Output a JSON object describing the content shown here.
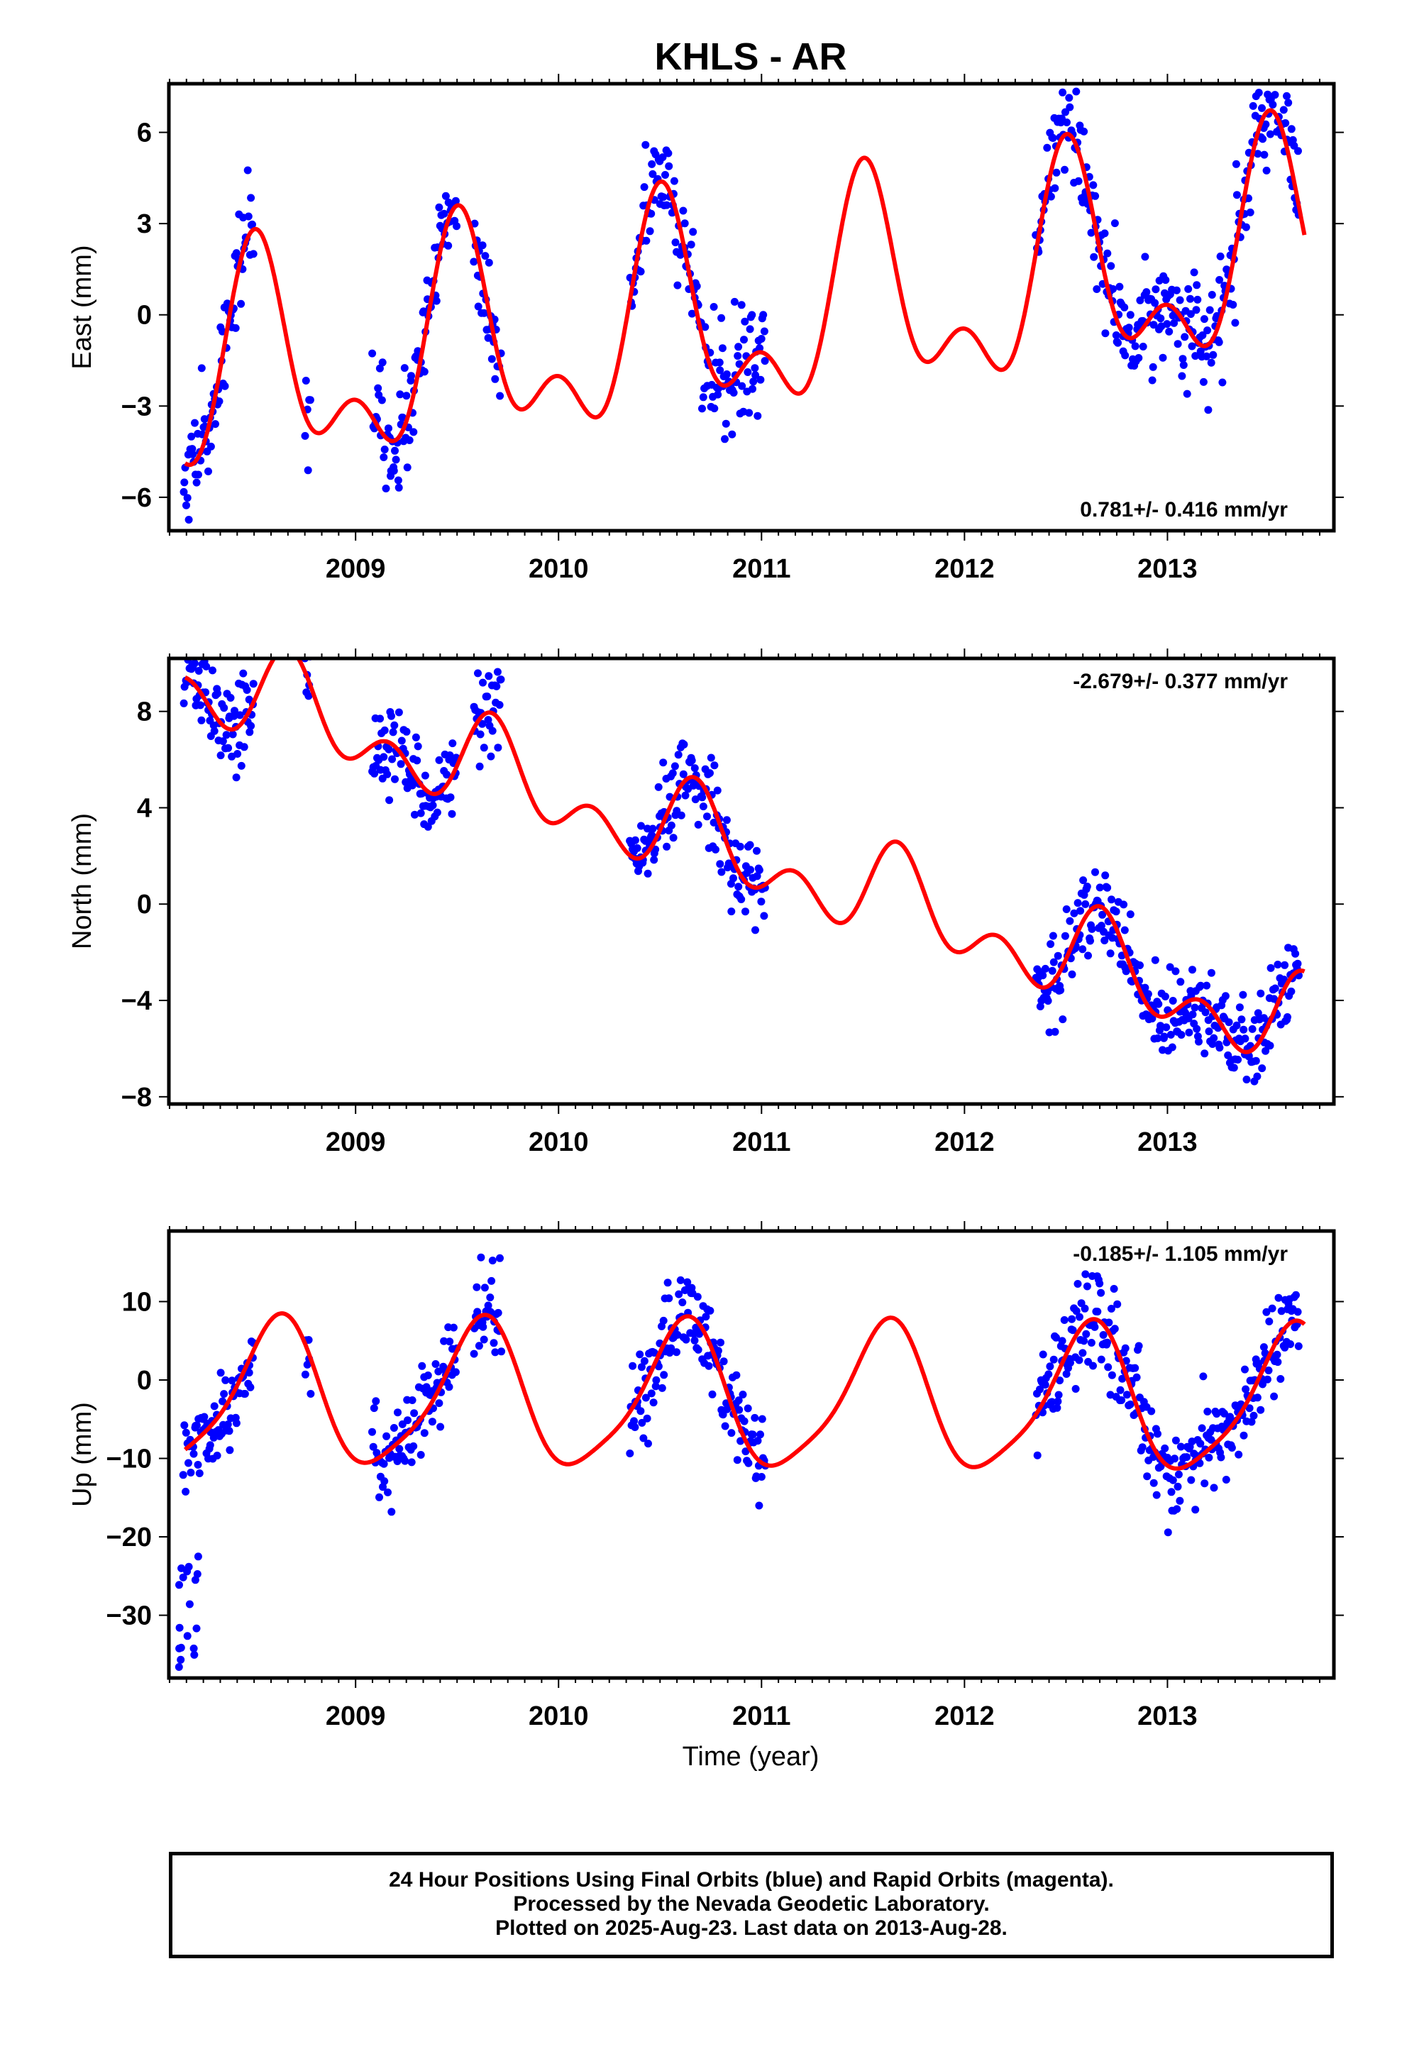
{
  "title": "KHLS - AR",
  "xlabel": "Time (year)",
  "footer": {
    "line1": "24 Hour Positions Using Final Orbits (blue) and Rapid Orbits (magenta).",
    "line2": "Processed by the Nevada Geodetic Laboratory.",
    "line3": "Plotted on 2025-Aug-23. Last data on 2013-Aug-28."
  },
  "colors": {
    "points": "#0000ff",
    "model": "#ff0000",
    "frame": "#000000"
  },
  "chart_data": [
    {
      "type": "scatter",
      "title": "KHLS - AR",
      "ylabel": "East (mm)",
      "xlabel": "",
      "xlim": [
        2008.08,
        2013.82
      ],
      "ylim": [
        -7.1,
        7.6
      ],
      "xticks": [
        2009,
        2010,
        2011,
        2012,
        2013
      ],
      "yticks": [
        -6,
        -3,
        0,
        3,
        6
      ],
      "yticklabels": [
        "−6",
        "−3",
        "0",
        "3",
        "6"
      ],
      "annotation": "0.781+/- 0.416 mm/yr",
      "annotation_position": "bottom-right",
      "model": {
        "c0": -2.3,
        "rate": 0.781,
        "ann_cos": -3.0,
        "ann_sin": -0.3,
        "semi_cos": 1.8,
        "semi_sin": 0.0
      },
      "data_segments": [
        [
          2008.15,
          2008.5
        ],
        [
          2008.75,
          2008.78
        ],
        [
          2009.08,
          2009.5
        ],
        [
          2009.58,
          2009.72
        ],
        [
          2010.35,
          2011.02
        ],
        [
          2012.35,
          2013.65
        ]
      ],
      "noise": 0.9,
      "point_count": 620,
      "series": [
        {
          "type": "line",
          "values_source": "model fit"
        },
        {
          "type": "scatter",
          "values_source": "daily positions"
        }
      ]
    },
    {
      "type": "scatter",
      "ylabel": "North (mm)",
      "xlabel": "",
      "xlim": [
        2008.08,
        2013.82
      ],
      "ylim": [
        -8.3,
        10.2
      ],
      "xticks": [
        2009,
        2010,
        2011,
        2012,
        2013
      ],
      "yticks": [
        -8,
        -4,
        0,
        4,
        8
      ],
      "yticklabels": [
        "−8",
        "−4",
        "0",
        "4",
        "8"
      ],
      "annotation": "-2.679+/- 0.377 mm/yr",
      "annotation_position": "top-right",
      "model": {
        "c0": 9.6,
        "rate": -2.679,
        "ann_cos": -0.5,
        "ann_sin": -1.2,
        "semi_cos": -0.6,
        "semi_sin": 1.1
      },
      "data_segments": [
        [
          2008.15,
          2008.5
        ],
        [
          2008.75,
          2008.78
        ],
        [
          2009.08,
          2009.5
        ],
        [
          2009.58,
          2009.72
        ],
        [
          2010.35,
          2011.02
        ],
        [
          2012.35,
          2013.65
        ]
      ],
      "noise": 0.9,
      "point_count": 620
    },
    {
      "type": "scatter",
      "ylabel": "Up (mm)",
      "xlabel": "Time (year)",
      "xlim": [
        2008.08,
        2013.82
      ],
      "ylim": [
        -38,
        19
      ],
      "xticks": [
        2009,
        2010,
        2011,
        2012,
        2013
      ],
      "yticks": [
        -30,
        -20,
        -10,
        0,
        10
      ],
      "yticklabels": [
        "−30",
        "−20",
        "−10",
        "0",
        "10"
      ],
      "annotation": "-0.185+/- 1.105 mm/yr",
      "annotation_position": "top-right",
      "model": {
        "c0": -2.0,
        "rate": -0.185,
        "ann_cos": -7.0,
        "ann_sin": -5.8,
        "semi_cos": -1.0,
        "semi_sin": 1.5
      },
      "data_segments": [
        [
          2008.15,
          2008.5
        ],
        [
          2008.75,
          2008.78
        ],
        [
          2009.08,
          2009.5
        ],
        [
          2009.58,
          2009.72
        ],
        [
          2010.35,
          2011.02
        ],
        [
          2012.35,
          2013.65
        ]
      ],
      "noise": 3.0,
      "point_count": 620,
      "outliers": {
        "x_range": [
          2008.13,
          2008.24
        ],
        "y_range": [
          -37,
          -22
        ],
        "count": 18
      }
    }
  ]
}
